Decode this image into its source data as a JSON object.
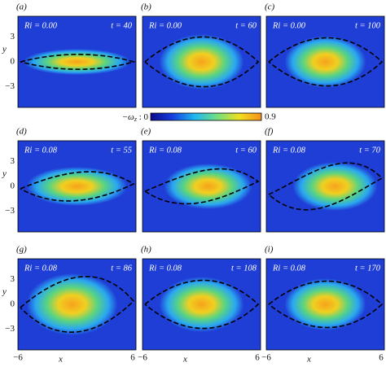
{
  "panels": [
    {
      "label": "(a)",
      "ri": "Ri = 0.00",
      "t": "t = 40"
    },
    {
      "label": "(b)",
      "ri": "Ri = 0.00",
      "t": "t = 60"
    },
    {
      "label": "(c)",
      "ri": "Ri = 0.00",
      "t": "t = 100"
    },
    {
      "label": "(d)",
      "ri": "Ri = 0.08",
      "t": "t = 55"
    },
    {
      "label": "(e)",
      "ri": "Ri = 0.08",
      "t": "t = 60"
    },
    {
      "label": "(f)",
      "ri": "Ri = 0.08",
      "t": "t = 70"
    },
    {
      "label": "(g)",
      "ri": "Ri = 0.08",
      "t": "t = 86"
    },
    {
      "label": "(h)",
      "ri": "Ri = 0.08",
      "t": "t = 108"
    },
    {
      "label": "(i)",
      "ri": "Ri = 0.08",
      "t": "t = 170"
    }
  ],
  "axes": {
    "y_label": "y",
    "x_label": "x",
    "y_ticks": [
      "3",
      "0",
      "−3"
    ],
    "x_ticks": [
      "−6",
      "6"
    ]
  },
  "colorbar": {
    "symbol": "−ω",
    "subscript": "z",
    "min": " : 0",
    "max": "0.9"
  }
}
